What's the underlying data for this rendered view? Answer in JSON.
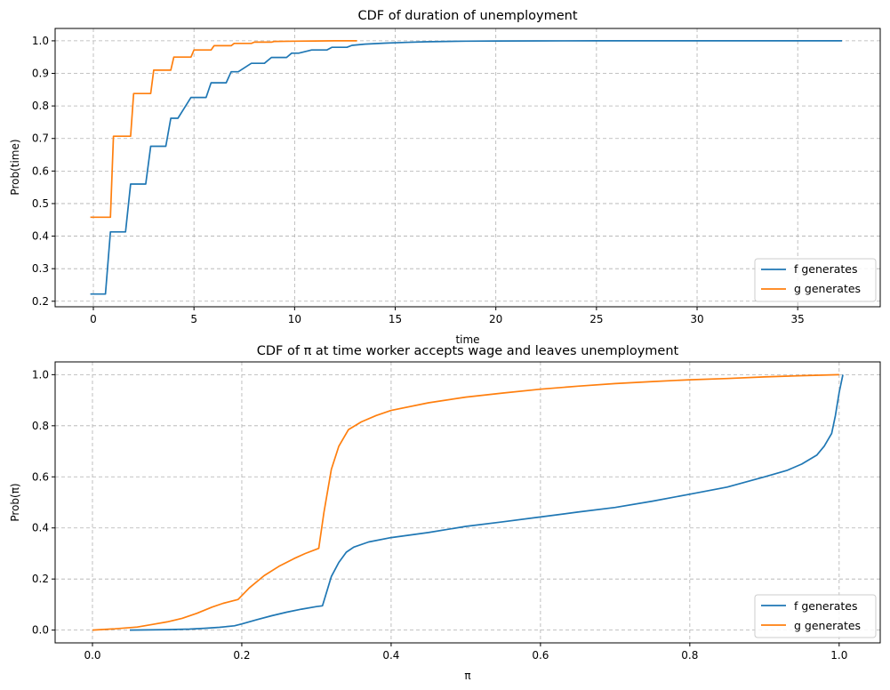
{
  "colors": {
    "f": "#1f77b4",
    "g": "#ff7f0e"
  },
  "chart_data": [
    {
      "type": "line",
      "title": "CDF of duration of unemployment",
      "xlabel": "time",
      "ylabel": "Prob(time)",
      "xlim": [
        -1.9,
        39.1
      ],
      "ylim": [
        0.183,
        1.038
      ],
      "xticks": [
        0,
        5,
        10,
        15,
        20,
        25,
        30,
        35
      ],
      "xtick_labels": [
        "0",
        "5",
        "10",
        "15",
        "20",
        "25",
        "30",
        "35"
      ],
      "yticks": [
        0.2,
        0.3,
        0.4,
        0.5,
        0.6,
        0.7,
        0.8,
        0.9,
        1.0
      ],
      "ytick_labels": [
        "0.2",
        "0.3",
        "0.4",
        "0.5",
        "0.6",
        "0.7",
        "0.8",
        "0.9",
        "1.0"
      ],
      "grid": true,
      "legend": "lower-right",
      "series": [
        {
          "name": "f generates",
          "color": "#1f77b4",
          "x": [
            -0.15,
            0.6,
            0.85,
            1.6,
            1.85,
            2.6,
            2.85,
            3.6,
            3.85,
            4.2,
            4.85,
            5.6,
            5.85,
            6.6,
            6.85,
            7.2,
            7.85,
            8.5,
            8.85,
            9.6,
            9.85,
            10.2,
            10.85,
            11.6,
            11.85,
            12.6,
            12.85,
            13.5,
            14.5,
            15.5,
            16.5,
            17.5,
            18.5,
            20,
            22,
            25,
            30,
            37.2
          ],
          "y": [
            0.222,
            0.222,
            0.413,
            0.413,
            0.56,
            0.56,
            0.676,
            0.676,
            0.762,
            0.762,
            0.826,
            0.826,
            0.871,
            0.871,
            0.905,
            0.905,
            0.931,
            0.931,
            0.949,
            0.949,
            0.962,
            0.962,
            0.972,
            0.972,
            0.98,
            0.98,
            0.986,
            0.99,
            0.993,
            0.995,
            0.997,
            0.998,
            0.999,
            0.9995,
            0.9998,
            0.9999,
            1.0,
            1.0
          ]
        },
        {
          "name": "g generates",
          "color": "#ff7f0e",
          "x": [
            -0.15,
            0.85,
            1.0,
            1.85,
            2.0,
            2.85,
            3.0,
            3.85,
            4.0,
            4.85,
            5.0,
            5.85,
            6.0,
            6.85,
            7.0,
            7.85,
            8.0,
            8.85,
            9.0,
            10.0,
            11.0,
            12.0,
            13.1
          ],
          "y": [
            0.458,
            0.458,
            0.707,
            0.707,
            0.838,
            0.838,
            0.91,
            0.91,
            0.95,
            0.95,
            0.972,
            0.972,
            0.985,
            0.985,
            0.992,
            0.992,
            0.996,
            0.996,
            0.998,
            0.999,
            0.9995,
            1.0,
            1.0
          ]
        }
      ]
    },
    {
      "type": "line",
      "title": "CDF of π at time worker accepts wage and leaves unemployment",
      "xlabel": "π",
      "ylabel": "Prob(π)",
      "xlim": [
        -0.05,
        1.055
      ],
      "ylim": [
        -0.05,
        1.05
      ],
      "xticks": [
        0.0,
        0.2,
        0.4,
        0.6,
        0.8,
        1.0
      ],
      "xtick_labels": [
        "0.0",
        "0.2",
        "0.4",
        "0.6",
        "0.8",
        "1.0"
      ],
      "yticks": [
        0.0,
        0.2,
        0.4,
        0.6,
        0.8,
        1.0
      ],
      "ytick_labels": [
        "0.0",
        "0.2",
        "0.4",
        "0.6",
        "0.8",
        "1.0"
      ],
      "grid": true,
      "legend": "lower-right",
      "series": [
        {
          "name": "f generates",
          "color": "#1f77b4",
          "x": [
            0.05,
            0.1,
            0.13,
            0.15,
            0.17,
            0.19,
            0.2,
            0.22,
            0.24,
            0.26,
            0.28,
            0.3,
            0.308,
            0.32,
            0.33,
            0.34,
            0.35,
            0.37,
            0.4,
            0.45,
            0.5,
            0.55,
            0.6,
            0.65,
            0.7,
            0.75,
            0.8,
            0.85,
            0.9,
            0.93,
            0.95,
            0.97,
            0.98,
            0.99,
            0.995,
            1.0,
            1.005
          ],
          "y": [
            0.0,
            0.002,
            0.004,
            0.007,
            0.011,
            0.017,
            0.024,
            0.041,
            0.056,
            0.07,
            0.082,
            0.092,
            0.095,
            0.21,
            0.265,
            0.305,
            0.325,
            0.345,
            0.362,
            0.382,
            0.406,
            0.424,
            0.443,
            0.462,
            0.48,
            0.505,
            0.532,
            0.56,
            0.6,
            0.625,
            0.65,
            0.685,
            0.72,
            0.77,
            0.84,
            0.93,
            1.0
          ]
        },
        {
          "name": "g generates",
          "color": "#ff7f0e",
          "x": [
            0.0,
            0.03,
            0.06,
            0.08,
            0.1,
            0.12,
            0.14,
            0.16,
            0.175,
            0.195,
            0.21,
            0.23,
            0.25,
            0.27,
            0.285,
            0.303,
            0.31,
            0.32,
            0.33,
            0.343,
            0.36,
            0.38,
            0.4,
            0.45,
            0.5,
            0.55,
            0.6,
            0.65,
            0.7,
            0.75,
            0.8,
            0.85,
            0.9,
            0.95,
            1.0
          ],
          "y": [
            0.0,
            0.005,
            0.012,
            0.022,
            0.032,
            0.046,
            0.066,
            0.09,
            0.105,
            0.12,
            0.165,
            0.213,
            0.25,
            0.28,
            0.3,
            0.32,
            0.46,
            0.63,
            0.72,
            0.785,
            0.815,
            0.84,
            0.86,
            0.89,
            0.912,
            0.928,
            0.943,
            0.955,
            0.965,
            0.973,
            0.98,
            0.985,
            0.991,
            0.996,
            1.0
          ]
        }
      ]
    }
  ]
}
